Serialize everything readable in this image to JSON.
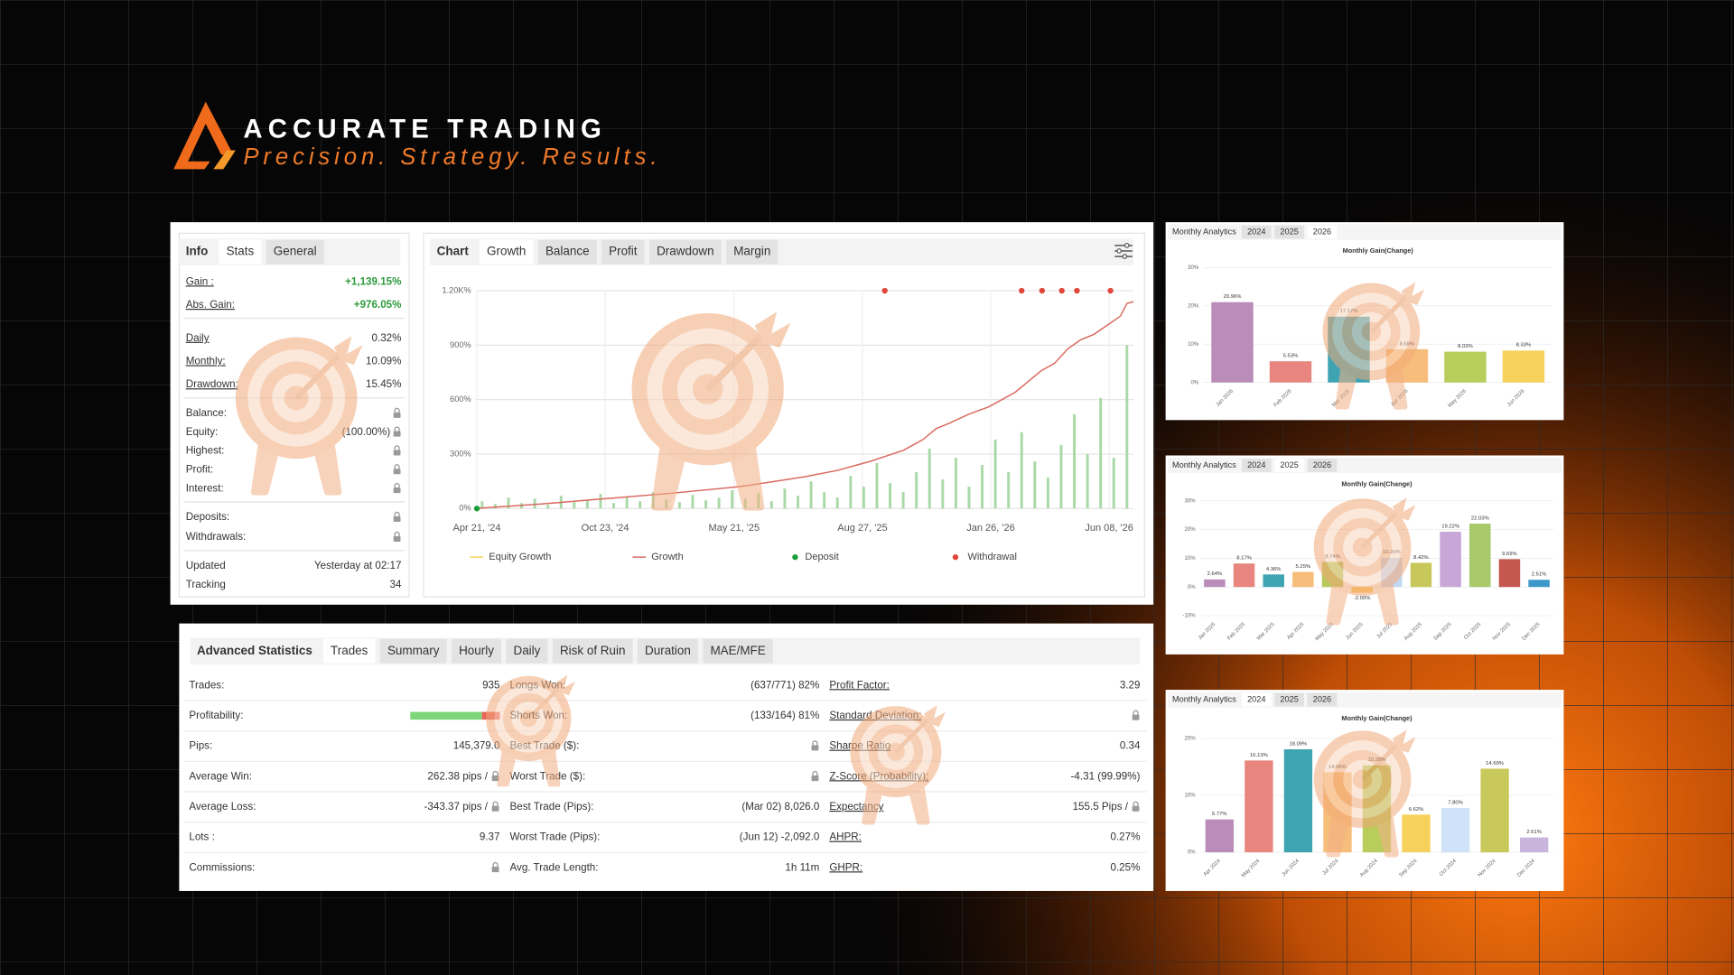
{
  "brand": {
    "name": "ACCURATE TRADING",
    "tagline": "Precision. Strategy. Results."
  },
  "info_panel": {
    "heading": "Info",
    "tabs": [
      "Stats",
      "General"
    ],
    "active": 0,
    "groups": [
      [
        {
          "label": "Gain :",
          "value": "+1,139.15%",
          "positive": true
        },
        {
          "label": "Abs. Gain:",
          "value": "+976.05%",
          "positive": true
        }
      ],
      [
        {
          "label": "Daily",
          "value": "0.32%"
        },
        {
          "label": "Monthly:",
          "value": "10.09%"
        },
        {
          "label": "Drawdown:",
          "value": "15.45%"
        }
      ],
      [
        {
          "label": "Balance:",
          "lock": true
        },
        {
          "label": "Equity:",
          "value": "(100.00%)",
          "lock": true
        },
        {
          "label": "Highest:",
          "lock": true
        },
        {
          "label": "Profit:",
          "lock": true
        },
        {
          "label": "Interest:",
          "lock": true
        }
      ],
      [
        {
          "label": "Deposits:",
          "lock": true
        },
        {
          "label": "Withdrawals:",
          "lock": true
        }
      ],
      [
        {
          "label": "Updated",
          "value": "Yesterday at 02:17"
        },
        {
          "label": "Tracking",
          "value": "34"
        }
      ]
    ]
  },
  "growth_panel": {
    "heading": "Chart",
    "tabs": [
      "Growth",
      "Balance",
      "Profit",
      "Drawdown",
      "Margin"
    ],
    "active": 0
  },
  "advanced_stats": {
    "heading": "Advanced Statistics",
    "tabs": [
      "Trades",
      "Summary",
      "Hourly",
      "Daily",
      "Risk of Ruin",
      "Duration",
      "MAE/MFE"
    ],
    "active": 0,
    "rows": [
      [
        {
          "label": "Trades:",
          "value": "935"
        },
        {
          "label": "Longs Won:",
          "value": "(637/771) 82%"
        },
        {
          "label": "Profit Factor:",
          "value": "3.29"
        }
      ],
      [
        {
          "label": "Profitability:",
          "bar_values": [
            80,
            20
          ],
          "bar_colors": [
            "#7fd67a",
            "#e9635a"
          ]
        },
        {
          "label": "Shorts Won:",
          "value": "(133/164) 81%"
        },
        {
          "label": "Standard Deviation:",
          "lock": true
        }
      ],
      [
        {
          "label": "Pips:",
          "value": "145,379.0"
        },
        {
          "label": "Best Trade ($):",
          "lock": true
        },
        {
          "label": "Sharpe Ratio",
          "value": "0.34"
        }
      ],
      [
        {
          "label": "Average Win:",
          "value": "262.38 pips /",
          "lock": true
        },
        {
          "label": "Worst Trade ($):",
          "lock": true
        },
        {
          "label": "Z-Score (Probability):",
          "value": "-4.31 (99.99%)"
        }
      ],
      [
        {
          "label": "Average Loss:",
          "value": "-343.37 pips /",
          "lock": true
        },
        {
          "label": "Best Trade (Pips):",
          "value": "(Mar 02) 8,026.0"
        },
        {
          "label": "Expectancy",
          "value": "155.5 Pips /",
          "lock": true
        }
      ],
      [
        {
          "label": "Lots :",
          "value": "9.37"
        },
        {
          "label": "Worst Trade (Pips):",
          "value": "(Jun 12) -2,092.0"
        },
        {
          "label": "AHPR:",
          "value": "0.27%"
        }
      ],
      [
        {
          "label": "Commissions:",
          "lock": true
        },
        {
          "label": "Avg. Trade Length:",
          "value": "1h 11m"
        },
        {
          "label": "GHPR:",
          "value": "0.25%"
        }
      ]
    ]
  },
  "chart_data": [
    {
      "type": "line",
      "xlim": [
        0,
        100
      ],
      "ylim": [
        0,
        1200
      ],
      "grid": true,
      "legend": "bottom",
      "yticks": [
        {
          "value": 0,
          "label": "0%"
        },
        {
          "value": 300,
          "label": "300%"
        },
        {
          "value": 600,
          "label": "600%"
        },
        {
          "value": 900,
          "label": "900%"
        },
        {
          "value": 1200,
          "label": "1.20K%"
        }
      ],
      "xticks": [
        {
          "value": 0.2,
          "label": "Apr 21, '24"
        },
        {
          "value": 19.7,
          "label": "Oct 23, '24"
        },
        {
          "value": 39.3,
          "label": "May 21, '25"
        },
        {
          "value": 58.8,
          "label": "Aug 27, '25"
        },
        {
          "value": 78.3,
          "label": "Jan 26, '26"
        },
        {
          "value": 96.3,
          "label": "Jun 08, '26"
        }
      ],
      "bars": {
        "color": "#a9d9a6",
        "x": [
          1,
          3,
          5,
          7,
          9,
          11,
          13,
          15,
          17,
          19,
          21,
          23,
          25,
          27,
          29,
          31,
          33,
          35,
          37,
          39,
          41,
          43,
          45,
          47,
          49,
          51,
          53,
          55,
          57,
          59,
          61,
          63,
          65,
          67,
          69,
          71,
          73,
          75,
          77,
          79,
          81,
          83,
          85,
          87,
          89,
          91,
          93,
          95,
          97,
          99
        ],
        "values": [
          40,
          25,
          60,
          30,
          55,
          20,
          70,
          35,
          45,
          80,
          30,
          65,
          40,
          90,
          50,
          35,
          75,
          45,
          60,
          100,
          55,
          85,
          40,
          110,
          70,
          150,
          90,
          60,
          180,
          120,
          250,
          140,
          90,
          200,
          330,
          160,
          280,
          120,
          240,
          380,
          200,
          420,
          260,
          170,
          350,
          520,
          300,
          610,
          280,
          900
        ]
      },
      "series": [
        {
          "name": "Equity Growth",
          "color": "#f5d35a",
          "style": "line"
        },
        {
          "name": "Growth",
          "color": "#d9695f",
          "style": "line",
          "x": [
            0,
            10,
            20,
            30,
            40,
            42,
            50,
            55,
            60,
            65,
            68,
            70,
            72,
            75,
            78,
            82,
            84,
            86,
            88,
            90,
            92,
            94,
            96,
            98,
            99,
            100
          ],
          "values": [
            0,
            25,
            55,
            85,
            120,
            130,
            175,
            210,
            260,
            320,
            380,
            440,
            470,
            520,
            560,
            640,
            700,
            760,
            800,
            880,
            930,
            960,
            1010,
            1060,
            1130,
            1140
          ]
        },
        {
          "name": "Deposit",
          "color": "#1a9e3a",
          "style": "dot",
          "x": [
            0.2
          ],
          "values": [
            0
          ]
        },
        {
          "name": "Withdrawal",
          "color": "#e0473a",
          "style": "dot",
          "x": [
            62.2,
            83.0,
            86.1,
            89.1,
            91.4,
            96.5
          ],
          "values": [
            1200,
            1200,
            1200,
            1200,
            1200,
            1200
          ]
        }
      ]
    },
    {
      "type": "bar",
      "panel_title": "Monthly Analytics",
      "years": [
        "2024",
        "2025",
        "2026"
      ],
      "active_tab": 2,
      "title": "Monthly Gain(Change)",
      "categories": [
        "Jan 2026",
        "Feb 2026",
        "Mar 2026",
        "Apr 2026",
        "May 2026",
        "Jun 2026"
      ],
      "values": [
        20.96,
        5.53,
        17.17,
        8.68,
        8.03,
        8.33
      ],
      "value_labels": [
        "20.96%",
        "5.53%",
        "17.17%",
        "8.68%",
        "8.03%",
        "8.33%"
      ],
      "colors": [
        "#b98cb9",
        "#e8857f",
        "#3fa4b2",
        "#f7bd7a",
        "#b8cd5c",
        "#f6d25c"
      ],
      "ylim": [
        0,
        30
      ],
      "yticks": [
        {
          "value": 0,
          "label": "0%"
        },
        {
          "value": 10,
          "label": "10%"
        },
        {
          "value": 20,
          "label": "20%"
        },
        {
          "value": 30,
          "label": "30%"
        }
      ]
    },
    {
      "type": "bar",
      "panel_title": "Monthly Analytics",
      "years": [
        "2024",
        "2025",
        "2026"
      ],
      "active_tab": 1,
      "title": "Monthly Gain(Change)",
      "categories": [
        "Jan 2025",
        "Feb 2025",
        "Mar 2025",
        "Apr 2025",
        "May 2025",
        "Jun 2025",
        "Jul 2025",
        "Aug 2025",
        "Sep 2025",
        "Oct 2025",
        "Nov 2025",
        "Dec 2025"
      ],
      "values": [
        2.64,
        8.17,
        4.36,
        5.25,
        8.74,
        -2.0,
        10.2,
        8.42,
        19.22,
        22.03,
        9.69,
        2.51
      ],
      "value_labels": [
        "2.64%",
        "8.17%",
        "4.36%",
        "5.25%",
        "8.74%",
        "-2.00%",
        "10.20%",
        "8.42%",
        "19.22%",
        "22.03%",
        "9.69%",
        "2.51%"
      ],
      "colors": [
        "#b98cb9",
        "#e8857f",
        "#3fa4b2",
        "#f7bd7a",
        "#b8c95a",
        "#f6c95c",
        "#c5d8f2",
        "#c8c85a",
        "#c8a6d8",
        "#a8c86a",
        "#c4584f",
        "#3b98c9"
      ],
      "ylim": [
        -10,
        30
      ],
      "yticks": [
        {
          "value": -10,
          "label": "-10%"
        },
        {
          "value": 0,
          "label": "0%"
        },
        {
          "value": 10,
          "label": "10%"
        },
        {
          "value": 20,
          "label": "20%"
        },
        {
          "value": 30,
          "label": "30%"
        }
      ]
    },
    {
      "type": "bar",
      "panel_title": "Monthly Analytics",
      "years": [
        "2024",
        "2025",
        "2026"
      ],
      "active_tab": 0,
      "title": "Monthly Gain(Change)",
      "categories": [
        "Apr 2024",
        "May 2024",
        "Jun 2024",
        "Jul 2024",
        "Aug 2024",
        "Sep 2024",
        "Oct 2024",
        "Nov 2024",
        "Dec 2024"
      ],
      "values": [
        5.77,
        16.13,
        18.09,
        14.06,
        15.28,
        6.62,
        7.8,
        14.69,
        2.61
      ],
      "value_labels": [
        "5.77%",
        "16.13%",
        "18.09%",
        "14.06%",
        "15.28%",
        "6.62%",
        "7.80%",
        "14.69%",
        "2.61%"
      ],
      "colors": [
        "#b98cb9",
        "#e8857f",
        "#3fa4b2",
        "#f7bd7a",
        "#b8cd5c",
        "#f6d25c",
        "#cfe2f8",
        "#c9c85a",
        "#c8b4dc"
      ],
      "ylim": [
        0,
        20
      ],
      "yticks": [
        {
          "value": 0,
          "label": "0%"
        },
        {
          "value": 10,
          "label": "10%"
        },
        {
          "value": 20,
          "label": "20%"
        }
      ]
    }
  ]
}
